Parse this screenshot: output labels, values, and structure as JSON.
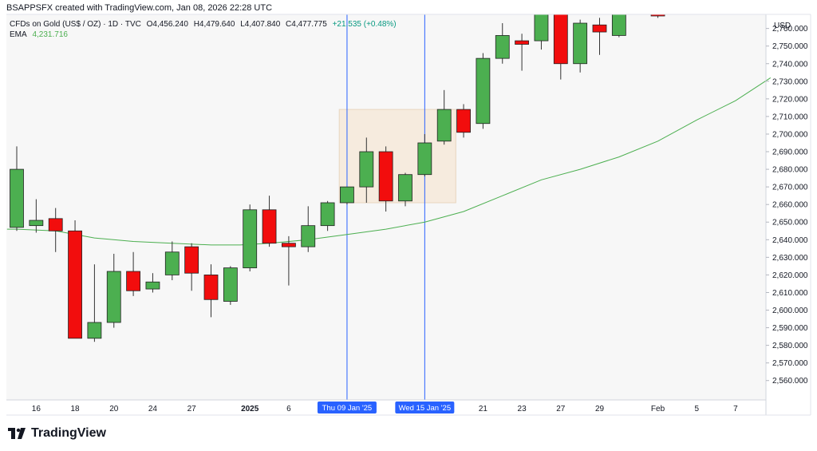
{
  "header": {
    "text": "BSAPPSFX created with TradingView.com, Jan 08, 2026 22:28 UTC"
  },
  "legend": {
    "symbol": "CFDs on Gold (US$ / OZ) · 1D · TVC",
    "open_label": "O",
    "open": "4,456.240",
    "high_label": "H",
    "high": "4,479.640",
    "low_label": "L",
    "low": "4,407.840",
    "close_label": "C",
    "close": "4,477.775",
    "change": "+21.535 (+0.48%)",
    "ema_label": "EMA",
    "ema_value": "4,231.716"
  },
  "brand": {
    "name": "TradingView"
  },
  "colors": {
    "up": "#4caf50",
    "down": "#f20d0d",
    "ema": "#4caf50",
    "vline": "#2962ff",
    "box": "#f6e9d9",
    "plot_bg": "#f7f7f7"
  },
  "chart_data": {
    "type": "candlestick",
    "currency": "USD",
    "ylim": [
      2549,
      2768
    ],
    "y_ticks": [
      2560,
      2570,
      2580,
      2590,
      2600,
      2610,
      2620,
      2630,
      2640,
      2650,
      2660,
      2670,
      2680,
      2690,
      2700,
      2710,
      2720,
      2730,
      2740,
      2750,
      2760
    ],
    "x_ticks": [
      {
        "i": 1,
        "label": "16"
      },
      {
        "i": 3,
        "label": "18"
      },
      {
        "i": 5,
        "label": "20"
      },
      {
        "i": 7,
        "label": "24"
      },
      {
        "i": 9,
        "label": "27"
      },
      {
        "i": 12,
        "label": "2025"
      },
      {
        "i": 14,
        "label": "6"
      },
      {
        "i": 24,
        "label": "21"
      },
      {
        "i": 26,
        "label": "23"
      },
      {
        "i": 28,
        "label": "27"
      },
      {
        "i": 30,
        "label": "29"
      },
      {
        "i": 33,
        "label": "Feb"
      },
      {
        "i": 35,
        "label": "5"
      },
      {
        "i": 37,
        "label": "7"
      }
    ],
    "highlight_labels": [
      {
        "i": 17,
        "label": "Thu 09 Jan '25"
      },
      {
        "i": 21,
        "label": "Wed 15 Jan '25"
      }
    ],
    "highlight_box": {
      "from": 16.6,
      "to": 22.6,
      "low": 2661,
      "high": 2714
    },
    "candles": [
      {
        "o": 2647,
        "h": 2693,
        "l": 2645,
        "c": 2680
      },
      {
        "o": 2648,
        "h": 2663,
        "l": 2644,
        "c": 2651
      },
      {
        "o": 2652,
        "h": 2658,
        "l": 2633,
        "c": 2645
      },
      {
        "o": 2645,
        "h": 2651,
        "l": 2584,
        "c": 2584
      },
      {
        "o": 2584,
        "h": 2626,
        "l": 2582,
        "c": 2593
      },
      {
        "o": 2593,
        "h": 2632,
        "l": 2590,
        "c": 2622
      },
      {
        "o": 2622,
        "h": 2633,
        "l": 2608,
        "c": 2611
      },
      {
        "o": 2612,
        "h": 2621,
        "l": 2610,
        "c": 2616
      },
      {
        "o": 2620,
        "h": 2639,
        "l": 2617,
        "c": 2633
      },
      {
        "o": 2636,
        "h": 2638,
        "l": 2611,
        "c": 2621
      },
      {
        "o": 2620,
        "h": 2626,
        "l": 2596,
        "c": 2606
      },
      {
        "o": 2605,
        "h": 2625,
        "l": 2603,
        "c": 2624
      },
      {
        "o": 2624,
        "h": 2660,
        "l": 2622,
        "c": 2657
      },
      {
        "o": 2657,
        "h": 2665,
        "l": 2636,
        "c": 2638
      },
      {
        "o": 2638,
        "h": 2642,
        "l": 2614,
        "c": 2636
      },
      {
        "o": 2636,
        "h": 2659,
        "l": 2633,
        "c": 2648
      },
      {
        "o": 2648,
        "h": 2662,
        "l": 2645,
        "c": 2661
      },
      {
        "o": 2661,
        "h": 2669,
        "l": 2660,
        "c": 2670
      },
      {
        "o": 2670,
        "h": 2698,
        "l": 2661,
        "c": 2690
      },
      {
        "o": 2690,
        "h": 2693,
        "l": 2656,
        "c": 2662
      },
      {
        "o": 2662,
        "h": 2678,
        "l": 2659,
        "c": 2677
      },
      {
        "o": 2677,
        "h": 2700,
        "l": 2676,
        "c": 2695
      },
      {
        "o": 2696,
        "h": 2725,
        "l": 2694,
        "c": 2714
      },
      {
        "o": 2714,
        "h": 2717,
        "l": 2698,
        "c": 2701
      },
      {
        "o": 2706,
        "h": 2746,
        "l": 2703,
        "c": 2743
      },
      {
        "o": 2743,
        "h": 2763,
        "l": 2740,
        "c": 2756
      },
      {
        "o": 2753,
        "h": 2757,
        "l": 2736,
        "c": 2751
      },
      {
        "o": 2753,
        "h": 2772,
        "l": 2748,
        "c": 2770
      },
      {
        "o": 2770,
        "h": 2772,
        "l": 2731,
        "c": 2740
      },
      {
        "o": 2740,
        "h": 2765,
        "l": 2735,
        "c": 2763
      },
      {
        "o": 2762,
        "h": 2766,
        "l": 2745,
        "c": 2758
      },
      {
        "o": 2756,
        "h": 2772,
        "l": 2755,
        "c": 2772
      },
      null,
      {
        "o": 2772,
        "h": 2772,
        "l": 2766,
        "c": 2770
      }
    ],
    "ema": [
      {
        "i": -0.5,
        "v": 2646
      },
      {
        "i": 0,
        "v": 2646
      },
      {
        "i": 2,
        "v": 2645
      },
      {
        "i": 4,
        "v": 2641
      },
      {
        "i": 6,
        "v": 2639
      },
      {
        "i": 8,
        "v": 2638
      },
      {
        "i": 10,
        "v": 2637
      },
      {
        "i": 11.5,
        "v": 2637
      },
      {
        "i": 13,
        "v": 2638
      },
      {
        "i": 15,
        "v": 2640
      },
      {
        "i": 17,
        "v": 2643
      },
      {
        "i": 19,
        "v": 2646
      },
      {
        "i": 21,
        "v": 2650
      },
      {
        "i": 23,
        "v": 2656
      },
      {
        "i": 25,
        "v": 2665
      },
      {
        "i": 27,
        "v": 2674
      },
      {
        "i": 29,
        "v": 2680
      },
      {
        "i": 31,
        "v": 2687
      },
      {
        "i": 33,
        "v": 2696
      },
      {
        "i": 35,
        "v": 2708
      },
      {
        "i": 37,
        "v": 2719
      },
      {
        "i": 38.8,
        "v": 2732
      }
    ]
  }
}
